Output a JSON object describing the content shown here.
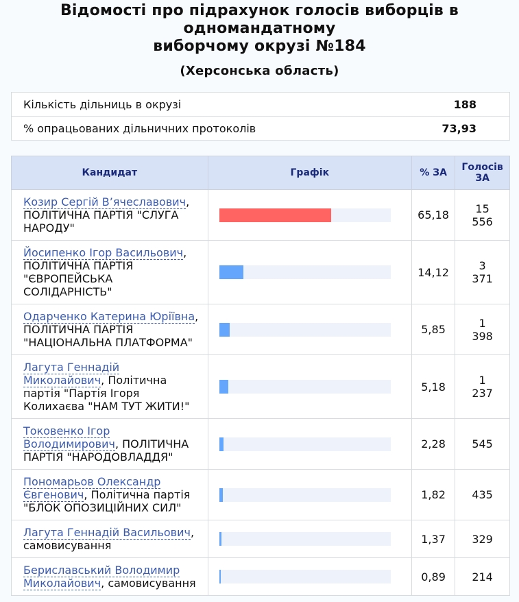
{
  "header": {
    "title_line1": "Відомості про підрахунок голосів виборців в",
    "title_line2": "одномандатному",
    "title_line3": "виборчому окрузі №184",
    "region": "(Херсонська область)"
  },
  "summary": {
    "rows": [
      {
        "label": "Кількість дільниць в окрузі",
        "value": "188"
      },
      {
        "label": "% опрацьованих дільничних протоколів",
        "value": "73,93"
      }
    ]
  },
  "results": {
    "columns": {
      "candidate": "Кандидат",
      "graph": "Графік",
      "percent": "% ЗА",
      "votes": "Голосів ЗА"
    },
    "bar_colors": {
      "leader": "#ff6462",
      "other": "#63a6fb"
    },
    "rows": [
      {
        "name": "Козир Сергій В’ячеславович",
        "party": ", ПОЛІТИЧНА ПАРТІЯ \"СЛУГА НАРОДУ\"",
        "percent": "65,18",
        "share": 65.18,
        "votes": "15 556",
        "leader": true,
        "height": 74
      },
      {
        "name": "Йосипенко Ігор Васильович",
        "party": ", ПОЛІТИЧНА ПАРТІЯ \"ЄВРОПЕЙСЬКА СОЛІДАРНІСТЬ\"",
        "percent": "14,12",
        "share": 14.12,
        "votes": "3 371",
        "leader": false,
        "height": 93
      },
      {
        "name": "Одарченко Катерина Юріївна",
        "party": ", ПОЛІТИЧНА ПАРТІЯ \"НАЦІОНАЛЬНА ПЛАТФОРМА\"",
        "percent": "5,85",
        "share": 5.85,
        "votes": "1 398",
        "leader": false,
        "height": 74
      },
      {
        "name": "Лагута Геннадій Миколайович",
        "party": ", Політична партія \"Партія Ігоря Колихаєва \"НАМ ТУТ ЖИТИ!\"",
        "percent": "5,18",
        "share": 5.18,
        "votes": "1 237",
        "leader": false,
        "height": 93
      },
      {
        "name": "Токовенко Ігор Володимирович",
        "party": ", ПОЛІТИЧНА ПАРТІЯ \"НАРОДОВЛАДДЯ\"",
        "percent": "2,28",
        "share": 2.28,
        "votes": "545",
        "leader": false,
        "height": 74
      },
      {
        "name": "Пономарьов Олександр Євгенович",
        "party": ", Політична партія \"БЛОК ОПОЗИЦІЙНИХ СИЛ\"",
        "percent": "1,82",
        "share": 1.82,
        "votes": "435",
        "leader": false,
        "height": 74
      },
      {
        "name": "Лагута Геннадій Васильович",
        "party": ", самовисування",
        "percent": "1,37",
        "share": 1.37,
        "votes": "329",
        "leader": false,
        "height": 55
      },
      {
        "name": "Бериславський Володимир Миколайович",
        "party": ", самовисування",
        "percent": "0,89",
        "share": 0.89,
        "votes": "214",
        "leader": false,
        "height": 55
      }
    ]
  }
}
